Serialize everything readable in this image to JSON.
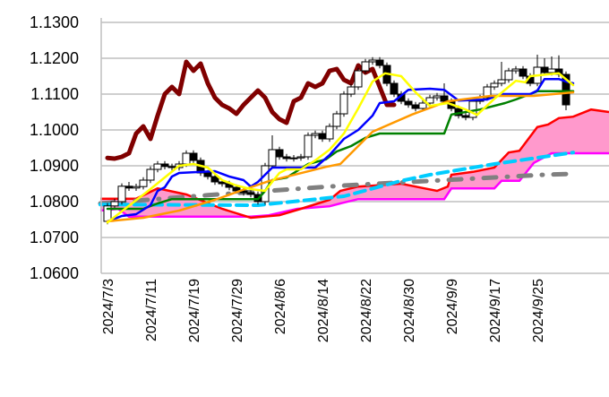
{
  "chart_data": {
    "type": "candlestick-ichimoku",
    "title": "",
    "xlabel": "",
    "ylabel": "",
    "ylim": [
      1.06,
      1.13
    ],
    "yticks": [
      "1.1300",
      "1.1200",
      "1.1100",
      "1.1000",
      "1.0900",
      "1.0800",
      "1.0700",
      "1.0600"
    ],
    "ytick_values": [
      1.13,
      1.12,
      1.11,
      1.1,
      1.09,
      1.08,
      1.07,
      1.06
    ],
    "xticks": [
      {
        "index": 0,
        "label": "2024/7/3"
      },
      {
        "index": 6,
        "label": "2024/7/11"
      },
      {
        "index": 12,
        "label": "2024/7/19"
      },
      {
        "index": 18,
        "label": "2024/7/29"
      },
      {
        "index": 24,
        "label": "2024/8/6"
      },
      {
        "index": 30,
        "label": "2024/8/14"
      },
      {
        "index": 36,
        "label": "2024/8/22"
      },
      {
        "index": 42,
        "label": "2024/8/30"
      },
      {
        "index": 48,
        "label": "2024/9/9"
      },
      {
        "index": 54,
        "label": "2024/9/17"
      },
      {
        "index": 60,
        "label": "2024/9/25"
      }
    ],
    "grid": "horizontal",
    "candles_ohlc": [
      [
        1.0745,
        1.0796,
        1.0737,
        1.0788
      ],
      [
        1.0788,
        1.0808,
        1.078,
        1.08
      ],
      [
        1.08,
        1.0851,
        1.0792,
        1.0843
      ],
      [
        1.0843,
        1.0855,
        1.083,
        1.0838
      ],
      [
        1.0838,
        1.085,
        1.083,
        1.0842
      ],
      [
        1.0842,
        1.0868,
        1.0834,
        1.086
      ],
      [
        1.086,
        1.0898,
        1.0852,
        1.089
      ],
      [
        1.089,
        1.0913,
        1.0882,
        1.0905
      ],
      [
        1.0905,
        1.0913,
        1.089,
        1.0898
      ],
      [
        1.0898,
        1.0906,
        1.0887,
        1.0895
      ],
      [
        1.0895,
        1.0913,
        1.0887,
        1.0905
      ],
      [
        1.0905,
        1.0943,
        1.0897,
        1.0935
      ],
      [
        1.0935,
        1.0943,
        1.0907,
        1.0915
      ],
      [
        1.0915,
        1.0923,
        1.0872,
        1.088
      ],
      [
        1.088,
        1.0888,
        1.0862,
        1.087
      ],
      [
        1.087,
        1.0878,
        1.0847,
        1.0855
      ],
      [
        1.0855,
        1.0863,
        1.0842,
        1.085
      ],
      [
        1.085,
        1.0858,
        1.0832,
        1.084
      ],
      [
        1.084,
        1.0848,
        1.0822,
        1.083
      ],
      [
        1.083,
        1.0838,
        1.0817,
        1.0825
      ],
      [
        1.0825,
        1.0833,
        1.0812,
        1.082
      ],
      [
        1.082,
        1.0828,
        1.0792,
        1.08
      ],
      [
        1.08,
        1.0908,
        1.0792,
        1.09
      ],
      [
        1.09,
        1.0985,
        1.0892,
        1.0945
      ],
      [
        1.0945,
        1.0953,
        1.0917,
        1.0925
      ],
      [
        1.0925,
        1.0933,
        1.0912,
        1.092
      ],
      [
        1.092,
        1.093,
        1.0912,
        1.0922
      ],
      [
        1.0922,
        1.0933,
        1.0914,
        1.0925
      ],
      [
        1.0925,
        1.0993,
        1.0917,
        1.0985
      ],
      [
        1.0985,
        1.0998,
        1.0977,
        1.099
      ],
      [
        1.099,
        1.0998,
        1.0967,
        1.0975
      ],
      [
        1.0975,
        1.1018,
        1.0967,
        1.101
      ],
      [
        1.101,
        1.1053,
        1.1002,
        1.1045
      ],
      [
        1.1045,
        1.1108,
        1.1037,
        1.11
      ],
      [
        1.11,
        1.1128,
        1.1092,
        1.112
      ],
      [
        1.112,
        1.1173,
        1.1112,
        1.1165
      ],
      [
        1.1165,
        1.1198,
        1.1157,
        1.119
      ],
      [
        1.119,
        1.1203,
        1.1182,
        1.1195
      ],
      [
        1.1195,
        1.1203,
        1.1172,
        1.118
      ],
      [
        1.118,
        1.1188,
        1.1122,
        1.113
      ],
      [
        1.113,
        1.1138,
        1.1092,
        1.11
      ],
      [
        1.11,
        1.1108,
        1.1072,
        1.108
      ],
      [
        1.108,
        1.1088,
        1.1062,
        1.107
      ],
      [
        1.107,
        1.1078,
        1.1052,
        1.106
      ],
      [
        1.106,
        1.1083,
        1.1052,
        1.1075
      ],
      [
        1.1075,
        1.1098,
        1.1067,
        1.109
      ],
      [
        1.109,
        1.1103,
        1.1082,
        1.1095
      ],
      [
        1.1095,
        1.113,
        1.1072,
        1.108
      ],
      [
        1.108,
        1.1088,
        1.1052,
        1.106
      ],
      [
        1.106,
        1.1068,
        1.1032,
        1.104
      ],
      [
        1.104,
        1.1048,
        1.1027,
        1.1035
      ],
      [
        1.1035,
        1.1088,
        1.1027,
        1.108
      ],
      [
        1.108,
        1.1098,
        1.1072,
        1.109
      ],
      [
        1.109,
        1.1128,
        1.1082,
        1.112
      ],
      [
        1.112,
        1.1138,
        1.1112,
        1.113
      ],
      [
        1.113,
        1.119,
        1.1122,
        1.114
      ],
      [
        1.114,
        1.1173,
        1.1132,
        1.1165
      ],
      [
        1.1165,
        1.1178,
        1.1157,
        1.117
      ],
      [
        1.117,
        1.1178,
        1.1142,
        1.115
      ],
      [
        1.115,
        1.1158,
        1.1122,
        1.113
      ],
      [
        1.113,
        1.121,
        1.1122,
        1.1175
      ],
      [
        1.1175,
        1.12,
        1.1152,
        1.116
      ],
      [
        1.116,
        1.1205,
        1.1152,
        1.117
      ],
      [
        1.117,
        1.1208,
        1.1147,
        1.1155
      ],
      [
        1.1155,
        1.1163,
        1.1055,
        1.107
      ]
    ],
    "cloud": {
      "fill": "#ff99cc",
      "senkou_a": {
        "color": "#ff0000",
        "points": [
          [
            -1,
            1.0808
          ],
          [
            4,
            1.0808
          ],
          [
            7,
            1.0837
          ],
          [
            11,
            1.082
          ],
          [
            16,
            1.078
          ],
          [
            20,
            1.0755
          ],
          [
            24,
            1.0762
          ],
          [
            27,
            1.078
          ],
          [
            31,
            1.0805
          ],
          [
            32.5,
            1.083
          ],
          [
            35,
            1.0842
          ],
          [
            41,
            1.085
          ],
          [
            44,
            1.0838
          ],
          [
            46,
            1.083
          ],
          [
            47.5,
            1.0842
          ],
          [
            48,
            1.0875
          ],
          [
            51,
            1.0883
          ],
          [
            54,
            1.0895
          ],
          [
            56,
            1.0937
          ],
          [
            57.5,
            1.0942
          ],
          [
            60,
            1.1008
          ],
          [
            61.5,
            1.1015
          ],
          [
            63,
            1.1033
          ],
          [
            65,
            1.1037
          ],
          [
            67.5,
            1.1057
          ],
          [
            70,
            1.105
          ]
        ]
      },
      "senkou_b": {
        "color": "#ff00ff",
        "points": [
          [
            -1,
            1.0775
          ],
          [
            1.5,
            1.078
          ],
          [
            3,
            1.0758
          ],
          [
            20,
            1.0758
          ],
          [
            22.5,
            1.0762
          ],
          [
            26.5,
            1.078
          ],
          [
            31,
            1.0787
          ],
          [
            32.5,
            1.0795
          ],
          [
            35,
            1.0807
          ],
          [
            47,
            1.0807
          ],
          [
            48,
            1.0837
          ],
          [
            54,
            1.0837
          ],
          [
            55,
            1.0858
          ],
          [
            57.5,
            1.0858
          ],
          [
            59.5,
            1.0908
          ],
          [
            62,
            1.0935
          ],
          [
            70,
            1.0935
          ]
        ]
      }
    },
    "lines": [
      {
        "name": "lagging-span",
        "color": "#800000",
        "width": 5,
        "dash": "",
        "points": [
          [
            0,
            1.0922
          ],
          [
            1,
            1.092
          ],
          [
            2,
            1.0925
          ],
          [
            3,
            1.0935
          ],
          [
            4,
            1.099
          ],
          [
            5,
            1.101
          ],
          [
            6,
            1.0975
          ],
          [
            7,
            1.104
          ],
          [
            8,
            1.11
          ],
          [
            9,
            1.112
          ],
          [
            10,
            1.11
          ],
          [
            11,
            1.119
          ],
          [
            12,
            1.1165
          ],
          [
            13,
            1.1185
          ],
          [
            14,
            1.113
          ],
          [
            15,
            1.109
          ],
          [
            16,
            1.107
          ],
          [
            17,
            1.106
          ],
          [
            18,
            1.1045
          ],
          [
            19,
            1.107
          ],
          [
            20,
            1.109
          ],
          [
            21,
            1.111
          ],
          [
            22,
            1.109
          ],
          [
            23,
            1.105
          ],
          [
            24,
            1.103
          ],
          [
            25,
            1.102
          ],
          [
            26,
            1.108
          ],
          [
            27,
            1.109
          ],
          [
            28,
            1.113
          ],
          [
            29,
            1.112
          ],
          [
            30,
            1.113
          ],
          [
            31,
            1.1165
          ],
          [
            32,
            1.117
          ],
          [
            33,
            1.114
          ],
          [
            34,
            1.113
          ],
          [
            35,
            1.118
          ],
          [
            36,
            1.116
          ],
          [
            37,
            1.117
          ],
          [
            38,
            1.112
          ],
          [
            39,
            1.107
          ],
          [
            40,
            1.107
          ]
        ]
      },
      {
        "name": "sma-long-gray",
        "color": "#808080",
        "width": 5,
        "dash": "14,12,1,12",
        "points": [
          [
            -1,
            1.0795
          ],
          [
            14,
            1.0818
          ],
          [
            33,
            1.0845
          ],
          [
            61,
            1.0875
          ],
          [
            64,
            1.0877
          ]
        ]
      },
      {
        "name": "sma-long-cyan",
        "color": "#00ccff",
        "width": 4,
        "dash": "12,7",
        "points": [
          [
            -1,
            1.0792
          ],
          [
            21,
            1.079
          ],
          [
            33,
            1.0815
          ],
          [
            41,
            1.0858
          ],
          [
            45,
            1.0875
          ],
          [
            54,
            1.0905
          ],
          [
            65,
            1.0937
          ]
        ]
      },
      {
        "name": "base-line-kijun",
        "color": "#008000",
        "width": 2.5,
        "dash": "",
        "points": [
          [
            0,
            1.078
          ],
          [
            5,
            1.078
          ],
          [
            7,
            1.0795
          ],
          [
            9,
            1.0807
          ],
          [
            21,
            1.0807
          ],
          [
            22,
            1.083
          ],
          [
            23,
            1.086
          ],
          [
            25,
            1.0867
          ],
          [
            28,
            1.0905
          ],
          [
            30.5,
            1.0918
          ],
          [
            32,
            1.094
          ],
          [
            34,
            1.0955
          ],
          [
            36,
            1.0978
          ],
          [
            38,
            1.099
          ],
          [
            47,
            1.099
          ],
          [
            48,
            1.1043
          ],
          [
            50,
            1.105
          ],
          [
            52,
            1.1057
          ],
          [
            55.5,
            1.1075
          ],
          [
            57,
            1.1085
          ],
          [
            59,
            1.11
          ],
          [
            60,
            1.1108
          ],
          [
            65,
            1.1108
          ]
        ]
      },
      {
        "name": "conversion-line-tenkan",
        "color": "#0000ff",
        "width": 2.5,
        "dash": "",
        "points": [
          [
            0,
            1.0745
          ],
          [
            2,
            1.076
          ],
          [
            4,
            1.0765
          ],
          [
            6,
            1.079
          ],
          [
            7,
            1.083
          ],
          [
            8,
            1.084
          ],
          [
            9,
            1.087
          ],
          [
            10,
            1.088
          ],
          [
            15,
            1.0885
          ],
          [
            17,
            1.087
          ],
          [
            19,
            1.086
          ],
          [
            20,
            1.0842
          ],
          [
            21,
            1.0855
          ],
          [
            23,
            1.0895
          ],
          [
            29,
            1.0895
          ],
          [
            31,
            1.093
          ],
          [
            33,
            1.0975
          ],
          [
            35,
            1.1
          ],
          [
            37,
            1.104
          ],
          [
            38,
            1.1075
          ],
          [
            40,
            1.108
          ],
          [
            42,
            1.1112
          ],
          [
            45,
            1.1115
          ],
          [
            47,
            1.1112
          ],
          [
            49,
            1.1082
          ],
          [
            53,
            1.1085
          ],
          [
            55,
            1.11
          ],
          [
            59,
            1.11
          ],
          [
            60,
            1.111
          ],
          [
            61,
            1.1142
          ],
          [
            63,
            1.1142
          ],
          [
            64,
            1.1135
          ],
          [
            65,
            1.113
          ]
        ]
      },
      {
        "name": "sma-medium-orange",
        "color": "#ff9900",
        "width": 2.5,
        "dash": "",
        "points": [
          [
            0,
            1.0745
          ],
          [
            5,
            1.0755
          ],
          [
            10,
            1.0775
          ],
          [
            15,
            1.0805
          ],
          [
            18.5,
            1.083
          ],
          [
            22.5,
            1.0857
          ],
          [
            30.5,
            1.0897
          ],
          [
            32.5,
            1.0905
          ],
          [
            37,
            1.0995
          ],
          [
            42.5,
            1.1043
          ],
          [
            47.5,
            1.108
          ],
          [
            53.5,
            1.1095
          ],
          [
            59.5,
            1.1095
          ],
          [
            65,
            1.1105
          ]
        ]
      },
      {
        "name": "sma-short-yellow",
        "color": "#ffff00",
        "width": 2.5,
        "dash": "",
        "points": [
          [
            0,
            1.0742
          ],
          [
            6,
            1.0835
          ],
          [
            10,
            1.09
          ],
          [
            12,
            1.0905
          ],
          [
            14,
            1.0895
          ],
          [
            16,
            1.086
          ],
          [
            18,
            1.0845
          ],
          [
            20,
            1.0835
          ],
          [
            22,
            1.083
          ],
          [
            24,
            1.088
          ],
          [
            25,
            1.089
          ],
          [
            27,
            1.089
          ],
          [
            29,
            1.0915
          ],
          [
            31,
            1.0945
          ],
          [
            33,
            1.099
          ],
          [
            35,
            1.106
          ],
          [
            37,
            1.1135
          ],
          [
            38.75,
            1.1158
          ],
          [
            41,
            1.115
          ],
          [
            43,
            1.1105
          ],
          [
            45,
            1.1067
          ],
          [
            47.5,
            1.1075
          ],
          [
            50,
            1.1057
          ],
          [
            51.6,
            1.1042
          ],
          [
            54,
            1.1087
          ],
          [
            57,
            1.1137
          ],
          [
            58.3,
            1.1133
          ],
          [
            59,
            1.115
          ],
          [
            63,
            1.1158
          ],
          [
            65,
            1.1125
          ]
        ]
      }
    ]
  }
}
